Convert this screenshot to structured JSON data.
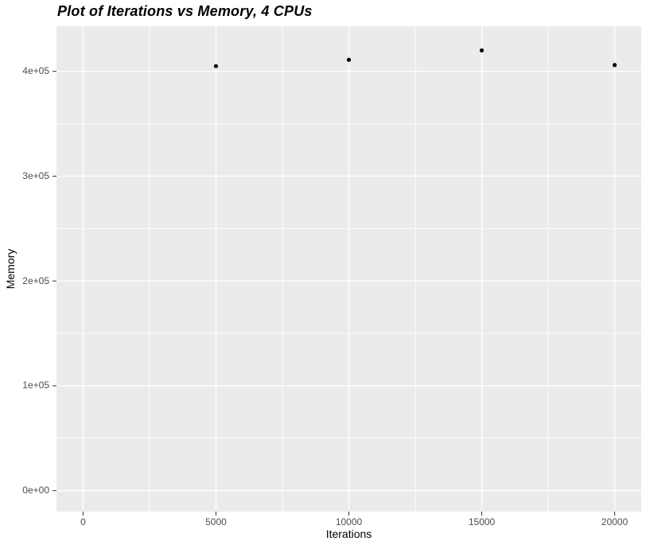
{
  "chart_data": {
    "type": "scatter",
    "title": "Plot of Iterations vs Memory, 4 CPUs",
    "xlabel": "Iterations",
    "ylabel": "Memory",
    "points": [
      {
        "x": 5000,
        "y": 405000
      },
      {
        "x": 10000,
        "y": 411000
      },
      {
        "x": 15000,
        "y": 420000
      },
      {
        "x": 20000,
        "y": 406000
      }
    ],
    "xlim": [
      -1000,
      21000
    ],
    "ylim": [
      -20000,
      443000
    ],
    "x_major_ticks": [
      0,
      5000,
      10000,
      15000,
      20000
    ],
    "x_tick_labels": [
      "0",
      "5000",
      "10000",
      "15000",
      "20000"
    ],
    "y_major_ticks": [
      0,
      100000,
      200000,
      300000,
      400000
    ],
    "y_tick_labels": [
      "0e+00",
      "1e+05",
      "2e+05",
      "3e+05",
      "4e+05"
    ],
    "x_minor_gridlines": [
      2500,
      7500,
      12500,
      17500
    ],
    "y_minor_gridlines": [
      50000,
      150000,
      250000,
      350000
    ],
    "grid": "on",
    "legend": "none",
    "point_radius": 2.6,
    "style": {
      "page_bg": "#FFFFFF",
      "panel_bg": "#EBEBEB",
      "grid_color": "#FFFFFF",
      "point_color": "#000000",
      "tick_label_color": "#4D4D4D",
      "tick_mark_color": "#333333",
      "axis_title_color": "#000000",
      "title_color": "#000000"
    }
  }
}
